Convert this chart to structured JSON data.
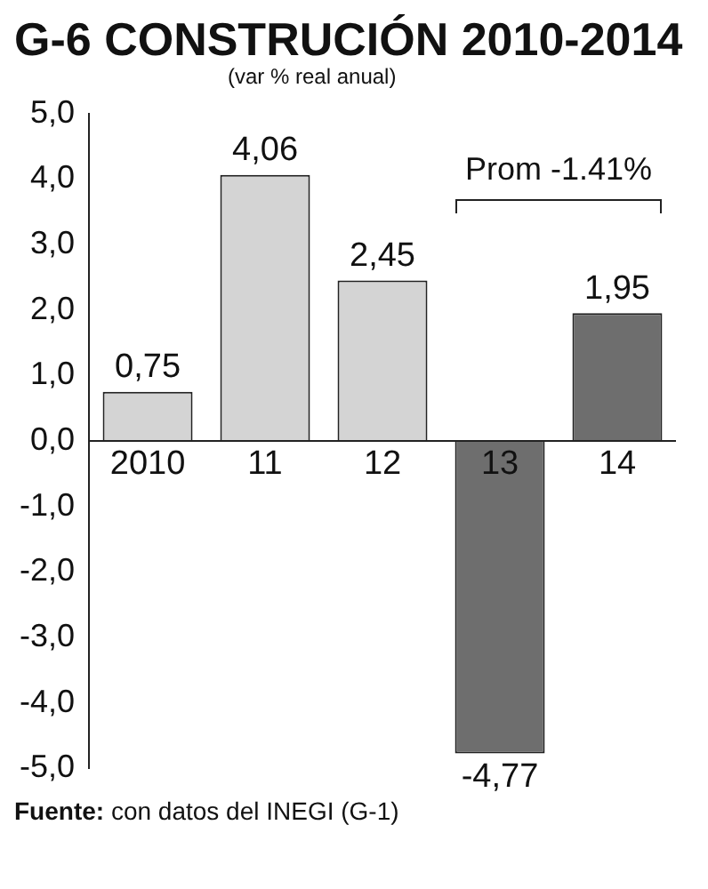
{
  "chart_data": {
    "type": "bar",
    "title": "G-6 CONSTRUCIÓN 2010-2014",
    "subtitle": "(var % real anual)",
    "categories": [
      "2010",
      "11",
      "12",
      "13",
      "14"
    ],
    "values": [
      0.75,
      4.06,
      2.45,
      -4.77,
      1.95
    ],
    "colors": [
      "#d4d4d4",
      "#d4d4d4",
      "#d4d4d4",
      "#6e6e6e",
      "#6e6e6e"
    ],
    "value_labels": [
      "0,75",
      "4,06",
      "2,45",
      "-4,77",
      "1,95"
    ],
    "ylim": [
      -5,
      5
    ],
    "yticks": [
      {
        "value": -5,
        "label": "-5,0"
      },
      {
        "value": -4,
        "label": "-4,0"
      },
      {
        "value": -3,
        "label": "-3,0"
      },
      {
        "value": -2,
        "label": "-2,0"
      },
      {
        "value": -1,
        "label": "-1,0"
      },
      {
        "value": 0,
        "label": "0,0"
      },
      {
        "value": 1,
        "label": "1,0"
      },
      {
        "value": 2,
        "label": "2,0"
      },
      {
        "value": 3,
        "label": "3,0"
      },
      {
        "value": 4,
        "label": "4,0"
      },
      {
        "value": 5,
        "label": "5,0"
      }
    ],
    "annotations": [
      "Prom -1.41%",
      "Fuente: con datos del INEGI (G-1)"
    ]
  }
}
